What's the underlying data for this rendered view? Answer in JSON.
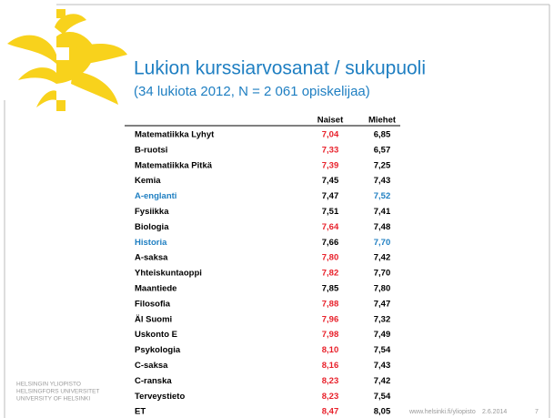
{
  "title": "Lukion kurssiarvosanat / sukupuoli",
  "subtitle": "(34 lukiota 2012, N = 2 061 opiskelijaa)",
  "table": {
    "header": [
      "Naiset",
      "Miehet"
    ],
    "rows": [
      {
        "cells": [
          "Matematiikka  Lyhyt",
          "7,04",
          "6,85"
        ],
        "colors": [
          "#000000",
          "#e8202a",
          "#000000"
        ]
      },
      {
        "cells": [
          "B-ruotsi",
          "7,33",
          "6,57"
        ],
        "colors": [
          "#000000",
          "#e8202a",
          "#000000"
        ]
      },
      {
        "cells": [
          "Matematiikka  Pitkä",
          "7,39",
          "7,25"
        ],
        "colors": [
          "#000000",
          "#e8202a",
          "#000000"
        ]
      },
      {
        "cells": [
          "Kemia",
          "7,45",
          "7,43"
        ],
        "colors": [
          "#000000",
          "#000000",
          "#000000"
        ]
      },
      {
        "cells": [
          "A-englanti",
          "7,47",
          "7,52"
        ],
        "colors": [
          "#1f7fc2",
          "#000000",
          "#1f7fc2"
        ]
      },
      {
        "cells": [
          "Fysiikka",
          "7,51",
          "7,41"
        ],
        "colors": [
          "#000000",
          "#000000",
          "#000000"
        ]
      },
      {
        "cells": [
          "Biologia",
          "7,64",
          "7,48"
        ],
        "colors": [
          "#000000",
          "#e8202a",
          "#000000"
        ]
      },
      {
        "cells": [
          "Historia",
          "7,66",
          "7,70"
        ],
        "colors": [
          "#1f7fc2",
          "#000000",
          "#1f7fc2"
        ]
      },
      {
        "cells": [
          "A-saksa",
          "7,80",
          "7,42"
        ],
        "colors": [
          "#000000",
          "#e8202a",
          "#000000"
        ]
      },
      {
        "cells": [
          "Yhteiskuntaoppi",
          "7,82",
          "7,70"
        ],
        "colors": [
          "#000000",
          "#e8202a",
          "#000000"
        ]
      },
      {
        "cells": [
          "Maantiede",
          "7,85",
          "7,80"
        ],
        "colors": [
          "#000000",
          "#000000",
          "#000000"
        ]
      },
      {
        "cells": [
          "Filosofia",
          "7,88",
          "7,47"
        ],
        "colors": [
          "#000000",
          "#e8202a",
          "#000000"
        ]
      },
      {
        "cells": [
          "Äl Suomi",
          "7,96",
          "7,32"
        ],
        "colors": [
          "#000000",
          "#e8202a",
          "#000000"
        ]
      },
      {
        "cells": [
          "Uskonto  E",
          "7,98",
          "7,49"
        ],
        "colors": [
          "#000000",
          "#e8202a",
          "#000000"
        ]
      },
      {
        "cells": [
          "Psykologia",
          "8,10",
          "7,54"
        ],
        "colors": [
          "#000000",
          "#e8202a",
          "#000000"
        ]
      },
      {
        "cells": [
          "C-saksa",
          "8,16",
          "7,43"
        ],
        "colors": [
          "#000000",
          "#e8202a",
          "#000000"
        ]
      },
      {
        "cells": [
          "C-ranska",
          "8,23",
          "7,42"
        ],
        "colors": [
          "#000000",
          "#e8202a",
          "#000000"
        ]
      },
      {
        "cells": [
          "Terveystieto",
          "8,23",
          "7,54"
        ],
        "colors": [
          "#000000",
          "#e8202a",
          "#000000"
        ]
      },
      {
        "cells": [
          "ET",
          "8,47",
          "8,05"
        ],
        "colors": [
          "#000000",
          "#e8202a",
          "#000000"
        ]
      }
    ]
  },
  "footer": {
    "logo_lines": [
      "HELSINGIN YLIOPISTO",
      "HELSINGFORS UNIVERSITET",
      "UNIVERSITY OF HELSINKI"
    ],
    "url": "www.helsinki.fi/yliopisto",
    "date": "2.6.2014",
    "page": "7"
  }
}
